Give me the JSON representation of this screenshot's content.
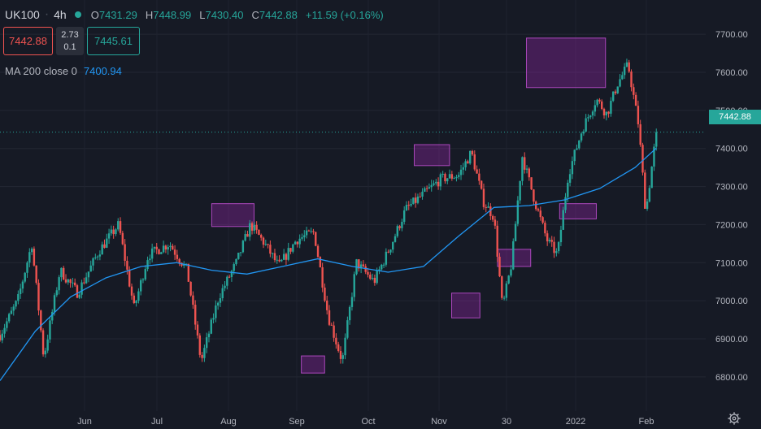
{
  "header": {
    "symbol": "UK100",
    "interval": "4h",
    "open_label": "O",
    "open_value": "7431.29",
    "high_label": "H",
    "high_value": "7448.99",
    "low_label": "L",
    "low_value": "7430.40",
    "close_label": "C",
    "close_value": "7442.88",
    "change": "+11.59 (+0.16%)"
  },
  "trade": {
    "sell_price": "7442.88",
    "spread": "2.73",
    "lot": "0.1",
    "buy_price": "7445.61"
  },
  "indicator": {
    "name": "MA 200 close 0",
    "value": "7400.94"
  },
  "last_price": "7442.88",
  "colors": {
    "background": "#161a25",
    "up": "#26a69a",
    "down": "#ef5350",
    "ma": "#2196f3",
    "highlight_fill": "#9c27b0",
    "highlight_stroke": "#ab47bc"
  },
  "chart_data": {
    "type": "candlestick",
    "symbol": "UK100",
    "interval": "4h",
    "y_axis_ticks": [
      6800,
      6900,
      7000,
      7100,
      7200,
      7300,
      7400,
      7500,
      7600,
      7700
    ],
    "y_axis_tick_labels": [
      "6800.00",
      "6900.00",
      "7000.00",
      "7100.00",
      "7200.00",
      "7300.00",
      "7400.00",
      "7500.00",
      "7600.00",
      "7700.00"
    ],
    "ylim": [
      6710,
      7790
    ],
    "x_axis_labels": [
      "Jun",
      "Jul",
      "Aug",
      "Sep",
      "Oct",
      "Nov",
      "30",
      "2022",
      "Feb"
    ],
    "grid": true,
    "price_path": [
      {
        "t": 0,
        "p": 6910
      },
      {
        "t": 0.025,
        "p": 7000
      },
      {
        "t": 0.045,
        "p": 7150
      },
      {
        "t": 0.062,
        "p": 6850
      },
      {
        "t": 0.085,
        "p": 7080
      },
      {
        "t": 0.11,
        "p": 7020
      },
      {
        "t": 0.14,
        "p": 7130
      },
      {
        "t": 0.168,
        "p": 7200
      },
      {
        "t": 0.19,
        "p": 6980
      },
      {
        "t": 0.21,
        "p": 7120
      },
      {
        "t": 0.24,
        "p": 7150
      },
      {
        "t": 0.265,
        "p": 7080
      },
      {
        "t": 0.285,
        "p": 6840
      },
      {
        "t": 0.31,
        "p": 7010
      },
      {
        "t": 0.335,
        "p": 7100
      },
      {
        "t": 0.355,
        "p": 7200
      },
      {
        "t": 0.375,
        "p": 7150
      },
      {
        "t": 0.395,
        "p": 7090
      },
      {
        "t": 0.42,
        "p": 7160
      },
      {
        "t": 0.445,
        "p": 7180
      },
      {
        "t": 0.465,
        "p": 6960
      },
      {
        "t": 0.485,
        "p": 6840
      },
      {
        "t": 0.505,
        "p": 7100
      },
      {
        "t": 0.53,
        "p": 7050
      },
      {
        "t": 0.555,
        "p": 7150
      },
      {
        "t": 0.575,
        "p": 7240
      },
      {
        "t": 0.6,
        "p": 7280
      },
      {
        "t": 0.625,
        "p": 7320
      },
      {
        "t": 0.65,
        "p": 7330
      },
      {
        "t": 0.668,
        "p": 7390
      },
      {
        "t": 0.685,
        "p": 7260
      },
      {
        "t": 0.7,
        "p": 7220
      },
      {
        "t": 0.712,
        "p": 6980
      },
      {
        "t": 0.725,
        "p": 7100
      },
      {
        "t": 0.74,
        "p": 7380
      },
      {
        "t": 0.758,
        "p": 7260
      },
      {
        "t": 0.775,
        "p": 7160
      },
      {
        "t": 0.79,
        "p": 7120
      },
      {
        "t": 0.805,
        "p": 7330
      },
      {
        "t": 0.825,
        "p": 7450
      },
      {
        "t": 0.845,
        "p": 7530
      },
      {
        "t": 0.86,
        "p": 7490
      },
      {
        "t": 0.875,
        "p": 7570
      },
      {
        "t": 0.89,
        "p": 7620
      },
      {
        "t": 0.905,
        "p": 7460
      },
      {
        "t": 0.915,
        "p": 7230
      },
      {
        "t": 0.93,
        "p": 7442.88
      }
    ],
    "moving_average": {
      "name": "MA 200 close 0",
      "points": [
        {
          "t": 0,
          "p": 6790
        },
        {
          "t": 0.05,
          "p": 6920
        },
        {
          "t": 0.1,
          "p": 7010
        },
        {
          "t": 0.15,
          "p": 7060
        },
        {
          "t": 0.2,
          "p": 7090
        },
        {
          "t": 0.25,
          "p": 7100
        },
        {
          "t": 0.3,
          "p": 7080
        },
        {
          "t": 0.35,
          "p": 7070
        },
        {
          "t": 0.4,
          "p": 7090
        },
        {
          "t": 0.45,
          "p": 7110
        },
        {
          "t": 0.5,
          "p": 7090
        },
        {
          "t": 0.55,
          "p": 7075
        },
        {
          "t": 0.6,
          "p": 7090
        },
        {
          "t": 0.65,
          "p": 7170
        },
        {
          "t": 0.7,
          "p": 7245
        },
        {
          "t": 0.75,
          "p": 7250
        },
        {
          "t": 0.8,
          "p": 7265
        },
        {
          "t": 0.85,
          "p": 7295
        },
        {
          "t": 0.9,
          "p": 7350
        },
        {
          "t": 0.93,
          "p": 7400.94
        }
      ]
    },
    "highlight_zones": [
      {
        "t0": 0.3,
        "t1": 0.36,
        "p_low": 7195,
        "p_high": 7255
      },
      {
        "t0": 0.427,
        "t1": 0.46,
        "p_low": 6810,
        "p_high": 6855
      },
      {
        "t0": 0.587,
        "t1": 0.637,
        "p_low": 7355,
        "p_high": 7410
      },
      {
        "t0": 0.64,
        "t1": 0.68,
        "p_low": 6955,
        "p_high": 7020
      },
      {
        "t0": 0.705,
        "t1": 0.752,
        "p_low": 7090,
        "p_high": 7135
      },
      {
        "t0": 0.746,
        "t1": 0.858,
        "p_low": 7560,
        "p_high": 7690
      },
      {
        "t0": 0.793,
        "t1": 0.845,
        "p_low": 7215,
        "p_high": 7255
      }
    ],
    "last_price": 7442.88
  }
}
